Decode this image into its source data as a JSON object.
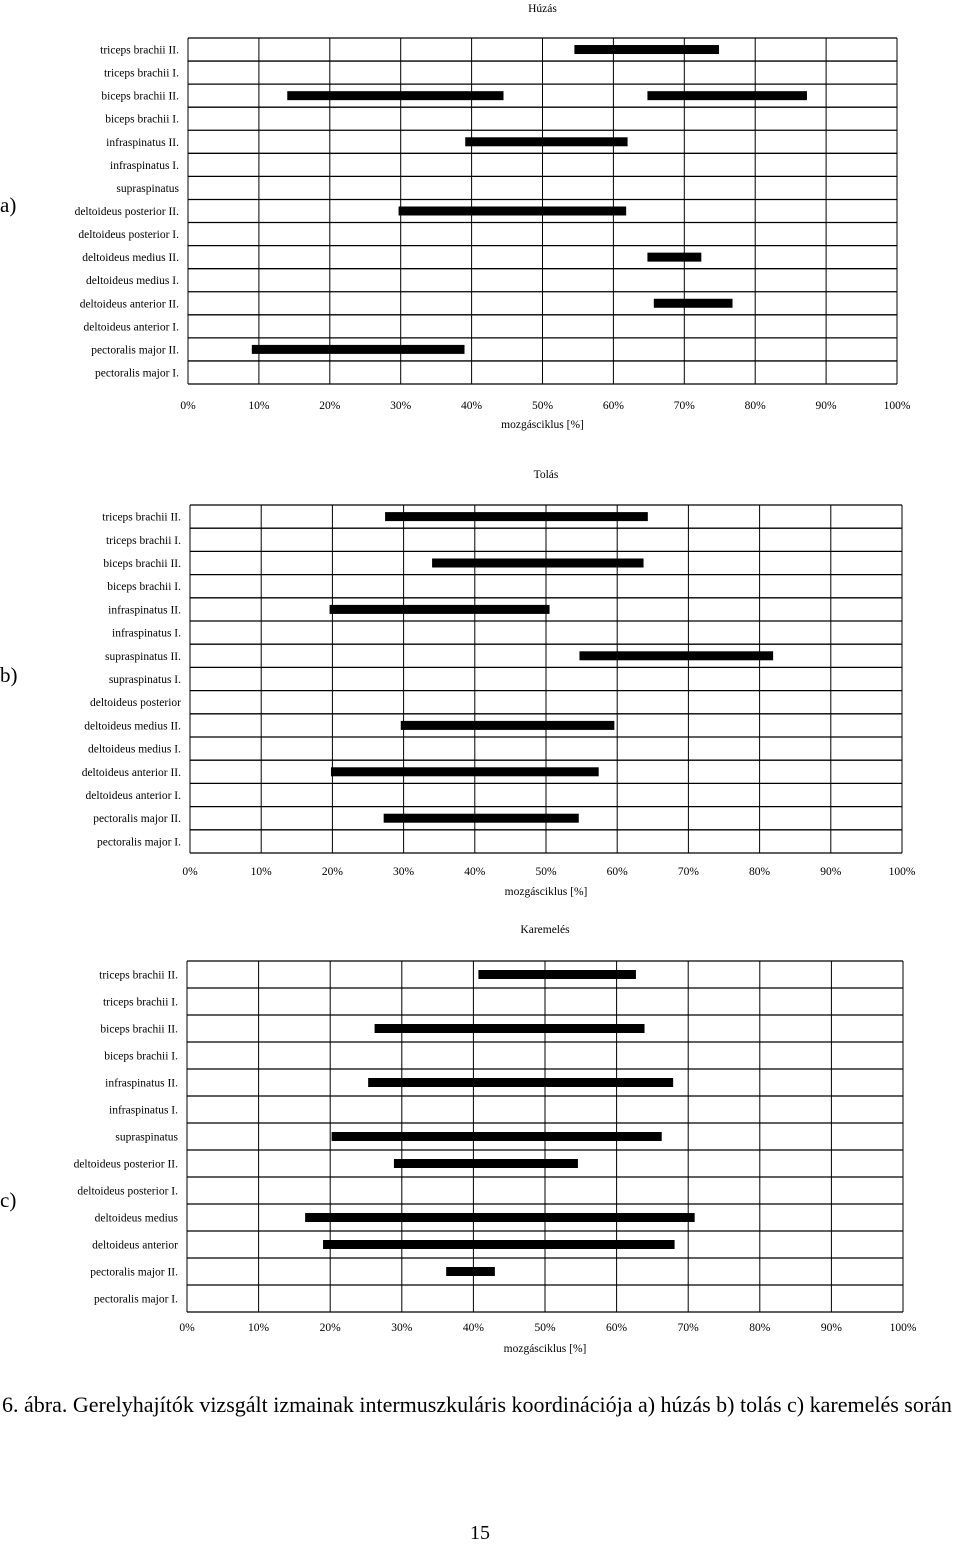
{
  "chart_data": [
    {
      "type": "gantt",
      "title": "Húzás",
      "panel": "a)",
      "xlabel": "mozgásciklus [%]",
      "xlim": [
        0,
        100
      ],
      "xticks": [
        "0%",
        "10%",
        "20%",
        "30%",
        "40%",
        "50%",
        "60%",
        "70%",
        "80%",
        "90%",
        "100%"
      ],
      "grid": true,
      "rows": [
        {
          "label": "triceps brachii II.",
          "segments": [
            [
              54.5,
              74.9
            ]
          ]
        },
        {
          "label": "triceps brachii I.",
          "segments": []
        },
        {
          "label": "biceps brachii II.",
          "segments": [
            [
              14,
              44.5
            ],
            [
              64.8,
              87.3
            ]
          ]
        },
        {
          "label": "biceps brachii I.",
          "segments": []
        },
        {
          "label": "infraspinatus II.",
          "segments": [
            [
              39.1,
              62
            ]
          ]
        },
        {
          "label": "infraspinatus I.",
          "segments": []
        },
        {
          "label": "supraspinatus",
          "segments": []
        },
        {
          "label": "deltoideus posterior II.",
          "segments": [
            [
              29.7,
              61.8
            ]
          ]
        },
        {
          "label": "deltoideus posterior I.",
          "segments": []
        },
        {
          "label": "deltoideus medius II.",
          "segments": [
            [
              64.8,
              72.4
            ]
          ]
        },
        {
          "label": "deltoideus medius I.",
          "segments": []
        },
        {
          "label": "deltoideus anterior II.",
          "segments": [
            [
              65.7,
              76.8
            ]
          ]
        },
        {
          "label": "deltoideus anterior I.",
          "segments": []
        },
        {
          "label": "pectoralis major II.",
          "segments": [
            [
              9,
              39
            ]
          ]
        },
        {
          "label": "pectoralis major I.",
          "segments": []
        }
      ]
    },
    {
      "type": "gantt",
      "title": "Tolás",
      "panel": "b)",
      "xlabel": "mozgásciklus [%]",
      "xlim": [
        0,
        100
      ],
      "xticks": [
        "0%",
        "10%",
        "20%",
        "30%",
        "40%",
        "50%",
        "60%",
        "70%",
        "80%",
        "90%",
        "100%"
      ],
      "grid": true,
      "rows": [
        {
          "label": "triceps brachii II.",
          "segments": [
            [
              27.4,
              64.3
            ]
          ]
        },
        {
          "label": "triceps brachii I.",
          "segments": []
        },
        {
          "label": "biceps brachii II.",
          "segments": [
            [
              34,
              63.7
            ]
          ]
        },
        {
          "label": "biceps brachii I.",
          "segments": []
        },
        {
          "label": "infraspinatus II.",
          "segments": [
            [
              19.6,
              50.5
            ]
          ]
        },
        {
          "label": "infraspinatus I.",
          "segments": []
        },
        {
          "label": "supraspinatus II.",
          "segments": [
            [
              54.7,
              81.9
            ]
          ]
        },
        {
          "label": "supraspinatus I.",
          "segments": []
        },
        {
          "label": "deltoideus posterior",
          "segments": []
        },
        {
          "label": "deltoideus medius II.",
          "segments": [
            [
              29.6,
              59.6
            ]
          ]
        },
        {
          "label": "deltoideus medius I.",
          "segments": []
        },
        {
          "label": "deltoideus anterior II.",
          "segments": [
            [
              19.8,
              57.4
            ]
          ]
        },
        {
          "label": "deltoideus anterior I.",
          "segments": []
        },
        {
          "label": "pectoralis major II.",
          "segments": [
            [
              27.2,
              54.6
            ]
          ]
        },
        {
          "label": "pectoralis major I.",
          "segments": []
        }
      ]
    },
    {
      "type": "gantt",
      "title": "Karemelés",
      "panel": "c)",
      "xlabel": "mozgásciklus [%]",
      "xlim": [
        0,
        100
      ],
      "xticks": [
        "0%",
        "10%",
        "20%",
        "30%",
        "40%",
        "50%",
        "60%",
        "70%",
        "80%",
        "90%",
        "100%"
      ],
      "grid": true,
      "rows": [
        {
          "label": "triceps brachii II.",
          "segments": [
            [
              40.7,
              62.7
            ]
          ]
        },
        {
          "label": "triceps brachii I.",
          "segments": []
        },
        {
          "label": "biceps brachii II.",
          "segments": [
            [
              26.2,
              63.9
            ]
          ]
        },
        {
          "label": "biceps brachii I.",
          "segments": []
        },
        {
          "label": "infraspinatus II.",
          "segments": [
            [
              25.3,
              67.9
            ]
          ]
        },
        {
          "label": "infraspinatus I.",
          "segments": []
        },
        {
          "label": "supraspinatus",
          "segments": [
            [
              20.2,
              66.3
            ]
          ]
        },
        {
          "label": "deltoideus posterior II.",
          "segments": [
            [
              28.9,
              54.6
            ]
          ]
        },
        {
          "label": "deltoideus posterior I.",
          "segments": []
        },
        {
          "label": "deltoideus medius",
          "segments": [
            [
              16.5,
              70.9
            ]
          ]
        },
        {
          "label": "deltoideus anterior",
          "segments": [
            [
              19,
              68.1
            ]
          ]
        },
        {
          "label": "pectoralis major II.",
          "segments": [
            [
              36.2,
              43
            ]
          ]
        },
        {
          "label": "pectoralis major I.",
          "segments": []
        }
      ]
    }
  ],
  "caption": "6. ábra. Gerelyhajítók vizsgált izmainak intermuszkuláris koordinációja a) húzás b) tolás c) karemelés során",
  "page_number": "15"
}
